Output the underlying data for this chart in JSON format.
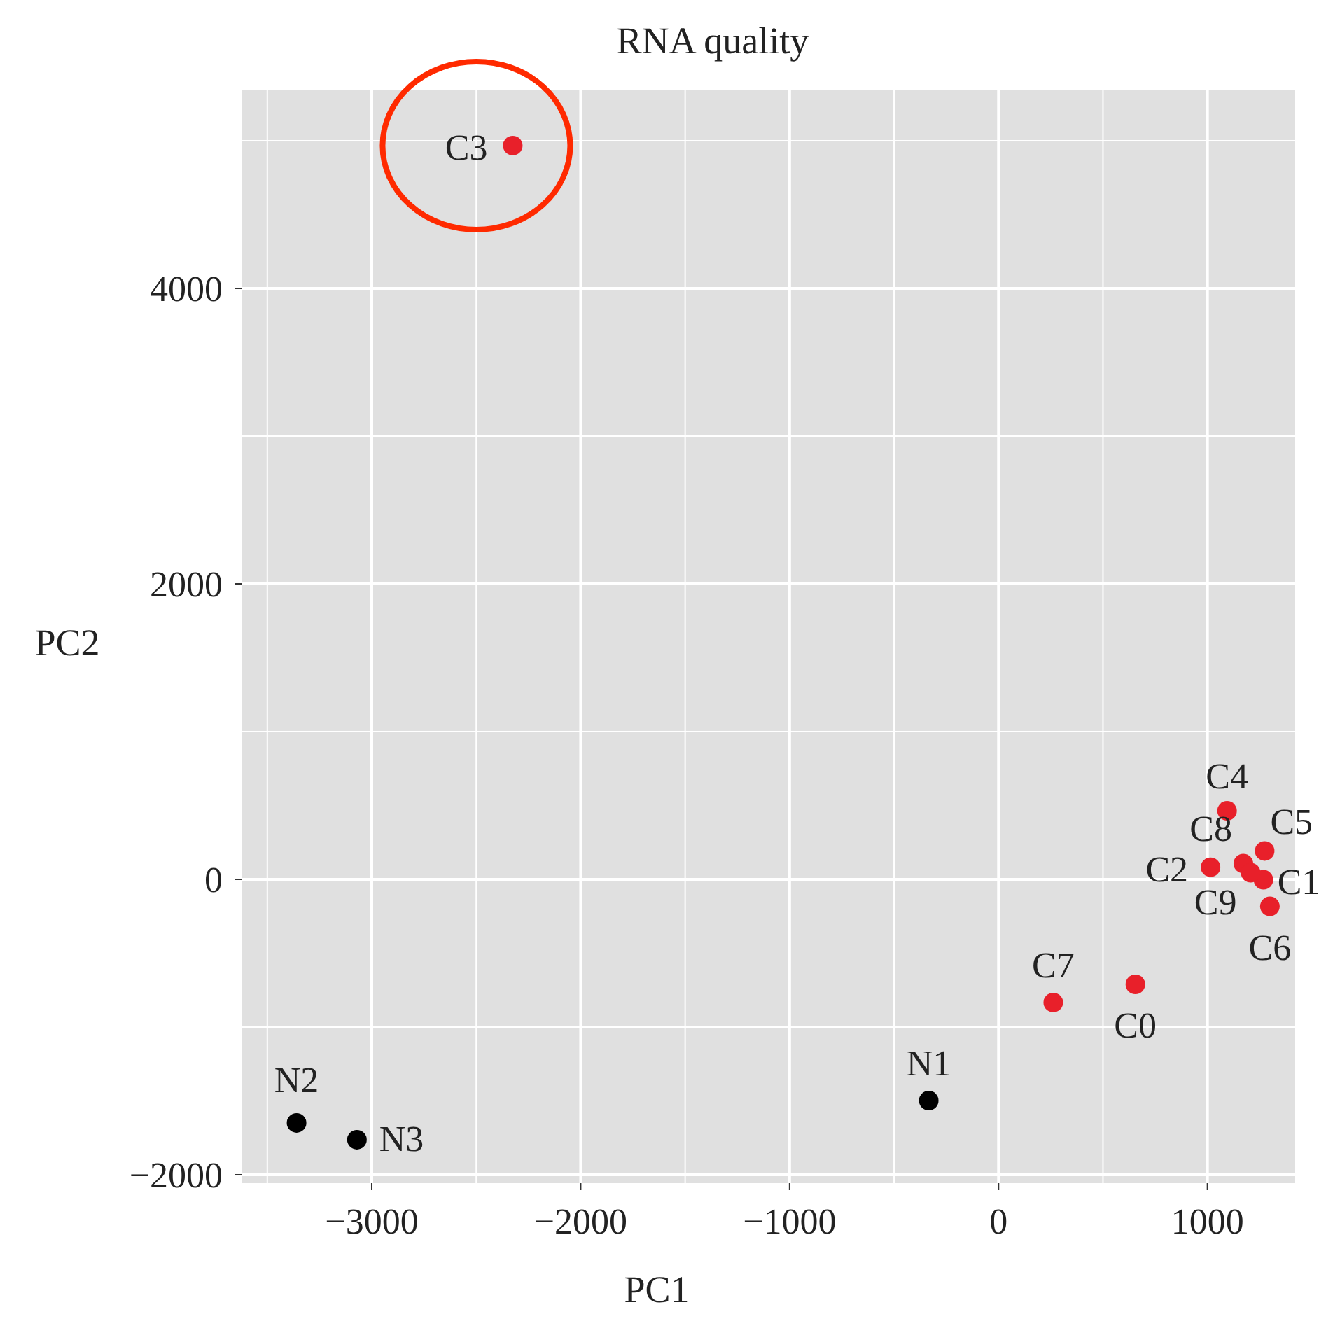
{
  "chart_data": {
    "type": "scatter",
    "title": "RNA quality",
    "xlabel": "PC1",
    "ylabel": "PC2",
    "xlim": [
      -3620,
      1420
    ],
    "ylim": [
      -2057,
      5346
    ],
    "xticks": [
      {
        "value": -3500,
        "label": null
      },
      -3000,
      {
        "value": -2500,
        "label": null
      },
      -2000,
      {
        "value": -1500,
        "label": null
      },
      -1000,
      {
        "value": -500,
        "label": null
      },
      0,
      {
        "value": 500,
        "label": null
      },
      1000
    ],
    "yticks": [
      -2000,
      {
        "value": -1000,
        "label": null
      },
      0,
      {
        "value": 1000,
        "label": null
      },
      2000,
      {
        "value": 3000,
        "label": null
      },
      4000,
      {
        "value": 5000,
        "label": null
      }
    ],
    "grid": true,
    "marker": "circle",
    "series": [
      {
        "color": "#e8202a",
        "x": [
          -2325,
          1094,
          1274,
          1172,
          1015,
          1268,
          1207,
          1299,
          262,
          655
        ],
        "values": [
          4967,
          464,
          192,
          107,
          82,
          -3,
          45,
          -183,
          -834,
          -711
        ]
      },
      {
        "color": "#000000",
        "x": [
          -334,
          -3360,
          -3071
        ],
        "values": [
          -1498,
          -1649,
          -1763
        ]
      }
    ],
    "annotations": [
      {
        "text": "C3",
        "x": -2325,
        "y": 4967
      },
      {
        "text": "C4",
        "x": 1094,
        "y": 464
      },
      {
        "text": "C5",
        "x": 1274,
        "y": 192
      },
      {
        "text": "C8",
        "x": 1172,
        "y": 107
      },
      {
        "text": "C2",
        "x": 1015,
        "y": 82
      },
      {
        "text": "C1",
        "x": 1268,
        "y": -3
      },
      {
        "text": "C9",
        "x": 1207,
        "y": 45
      },
      {
        "text": "C6",
        "x": 1299,
        "y": -183
      },
      {
        "text": "C7",
        "x": 262,
        "y": -834
      },
      {
        "text": "C0",
        "x": 655,
        "y": -711
      },
      {
        "text": "N1",
        "x": -334,
        "y": -1498
      },
      {
        "text": "N2",
        "x": -3360,
        "y": -1649
      },
      {
        "text": "N3",
        "x": -3071,
        "y": -1763
      }
    ]
  }
}
